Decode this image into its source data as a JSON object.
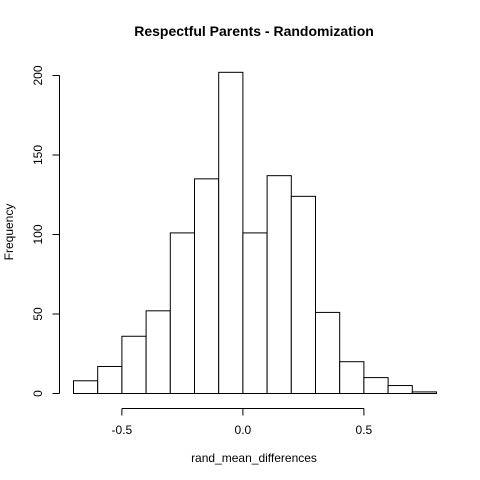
{
  "chart_data": {
    "type": "bar",
    "title": "Respectful Parents - Randomization",
    "xlabel": "rand_mean_differences",
    "ylabel": "Frequency",
    "bin_edges": [
      -0.7,
      -0.6,
      -0.5,
      -0.4,
      -0.3,
      -0.2,
      -0.1,
      0.0,
      0.1,
      0.2,
      0.3,
      0.4,
      0.5,
      0.6,
      0.7,
      0.8
    ],
    "values": [
      8,
      17,
      36,
      52,
      101,
      135,
      202,
      101,
      137,
      124,
      51,
      20,
      10,
      5,
      1
    ],
    "xlim": [
      -0.7,
      0.8
    ],
    "ylim": [
      0,
      200
    ],
    "x_ticks": [
      -0.5,
      0.0,
      0.5
    ],
    "x_tick_labels": [
      "-0.5",
      "0.0",
      "0.5"
    ],
    "y_ticks": [
      0,
      50,
      100,
      150,
      200
    ],
    "y_tick_labels": [
      "0",
      "50",
      "100",
      "150",
      "200"
    ],
    "grid": false,
    "bar_fill": "#ffffff",
    "bar_stroke": "#000000"
  }
}
